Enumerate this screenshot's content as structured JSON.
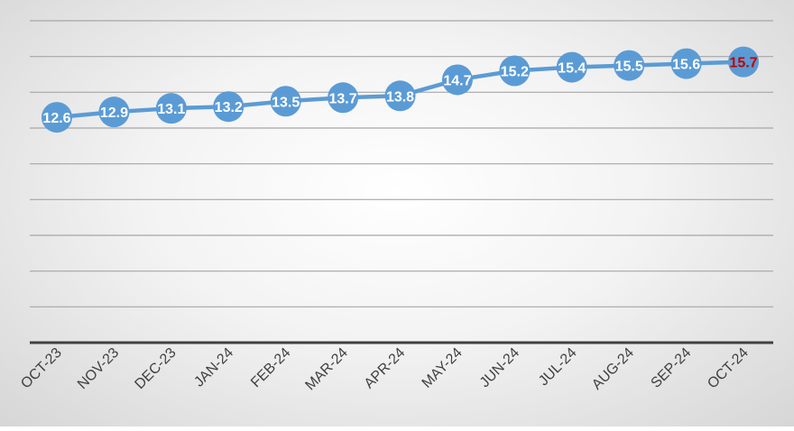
{
  "chart_data": {
    "type": "line",
    "title": "",
    "xlabel": "",
    "ylabel": "",
    "categories": [
      "OCT-23",
      "NOV-23",
      "DEC-23",
      "JAN-24",
      "FEB-24",
      "MAR-24",
      "APR-24",
      "MAY-24",
      "JUN-24",
      "JUL-24",
      "AUG-24",
      "SEP-24",
      "OCT-24"
    ],
    "series": [
      {
        "values": [
          12.6,
          12.9,
          13.1,
          13.2,
          13.5,
          13.7,
          13.8,
          14.7,
          15.2,
          15.4,
          15.5,
          15.6,
          15.7
        ],
        "data_labels": [
          "12.6",
          "12.9",
          "13.1",
          "13.2",
          "13.5",
          "13.7",
          "13.8",
          "14.7",
          "15.2",
          "15.4",
          "15.5",
          "15.6",
          "15.7"
        ]
      }
    ],
    "ylim": [
      0,
      18
    ],
    "y_tick_step": 2,
    "grid": true,
    "y_tick_labels_visible": false,
    "legend": "none",
    "highlight_index": 12,
    "colors": {
      "line": "#5b9bd5",
      "marker": "#5b9bd5",
      "label": "#ffffff",
      "highlight_label": "#c00000",
      "gridline": "#a6a6a6",
      "axis": "#404040",
      "tick_label": "#404040"
    }
  }
}
